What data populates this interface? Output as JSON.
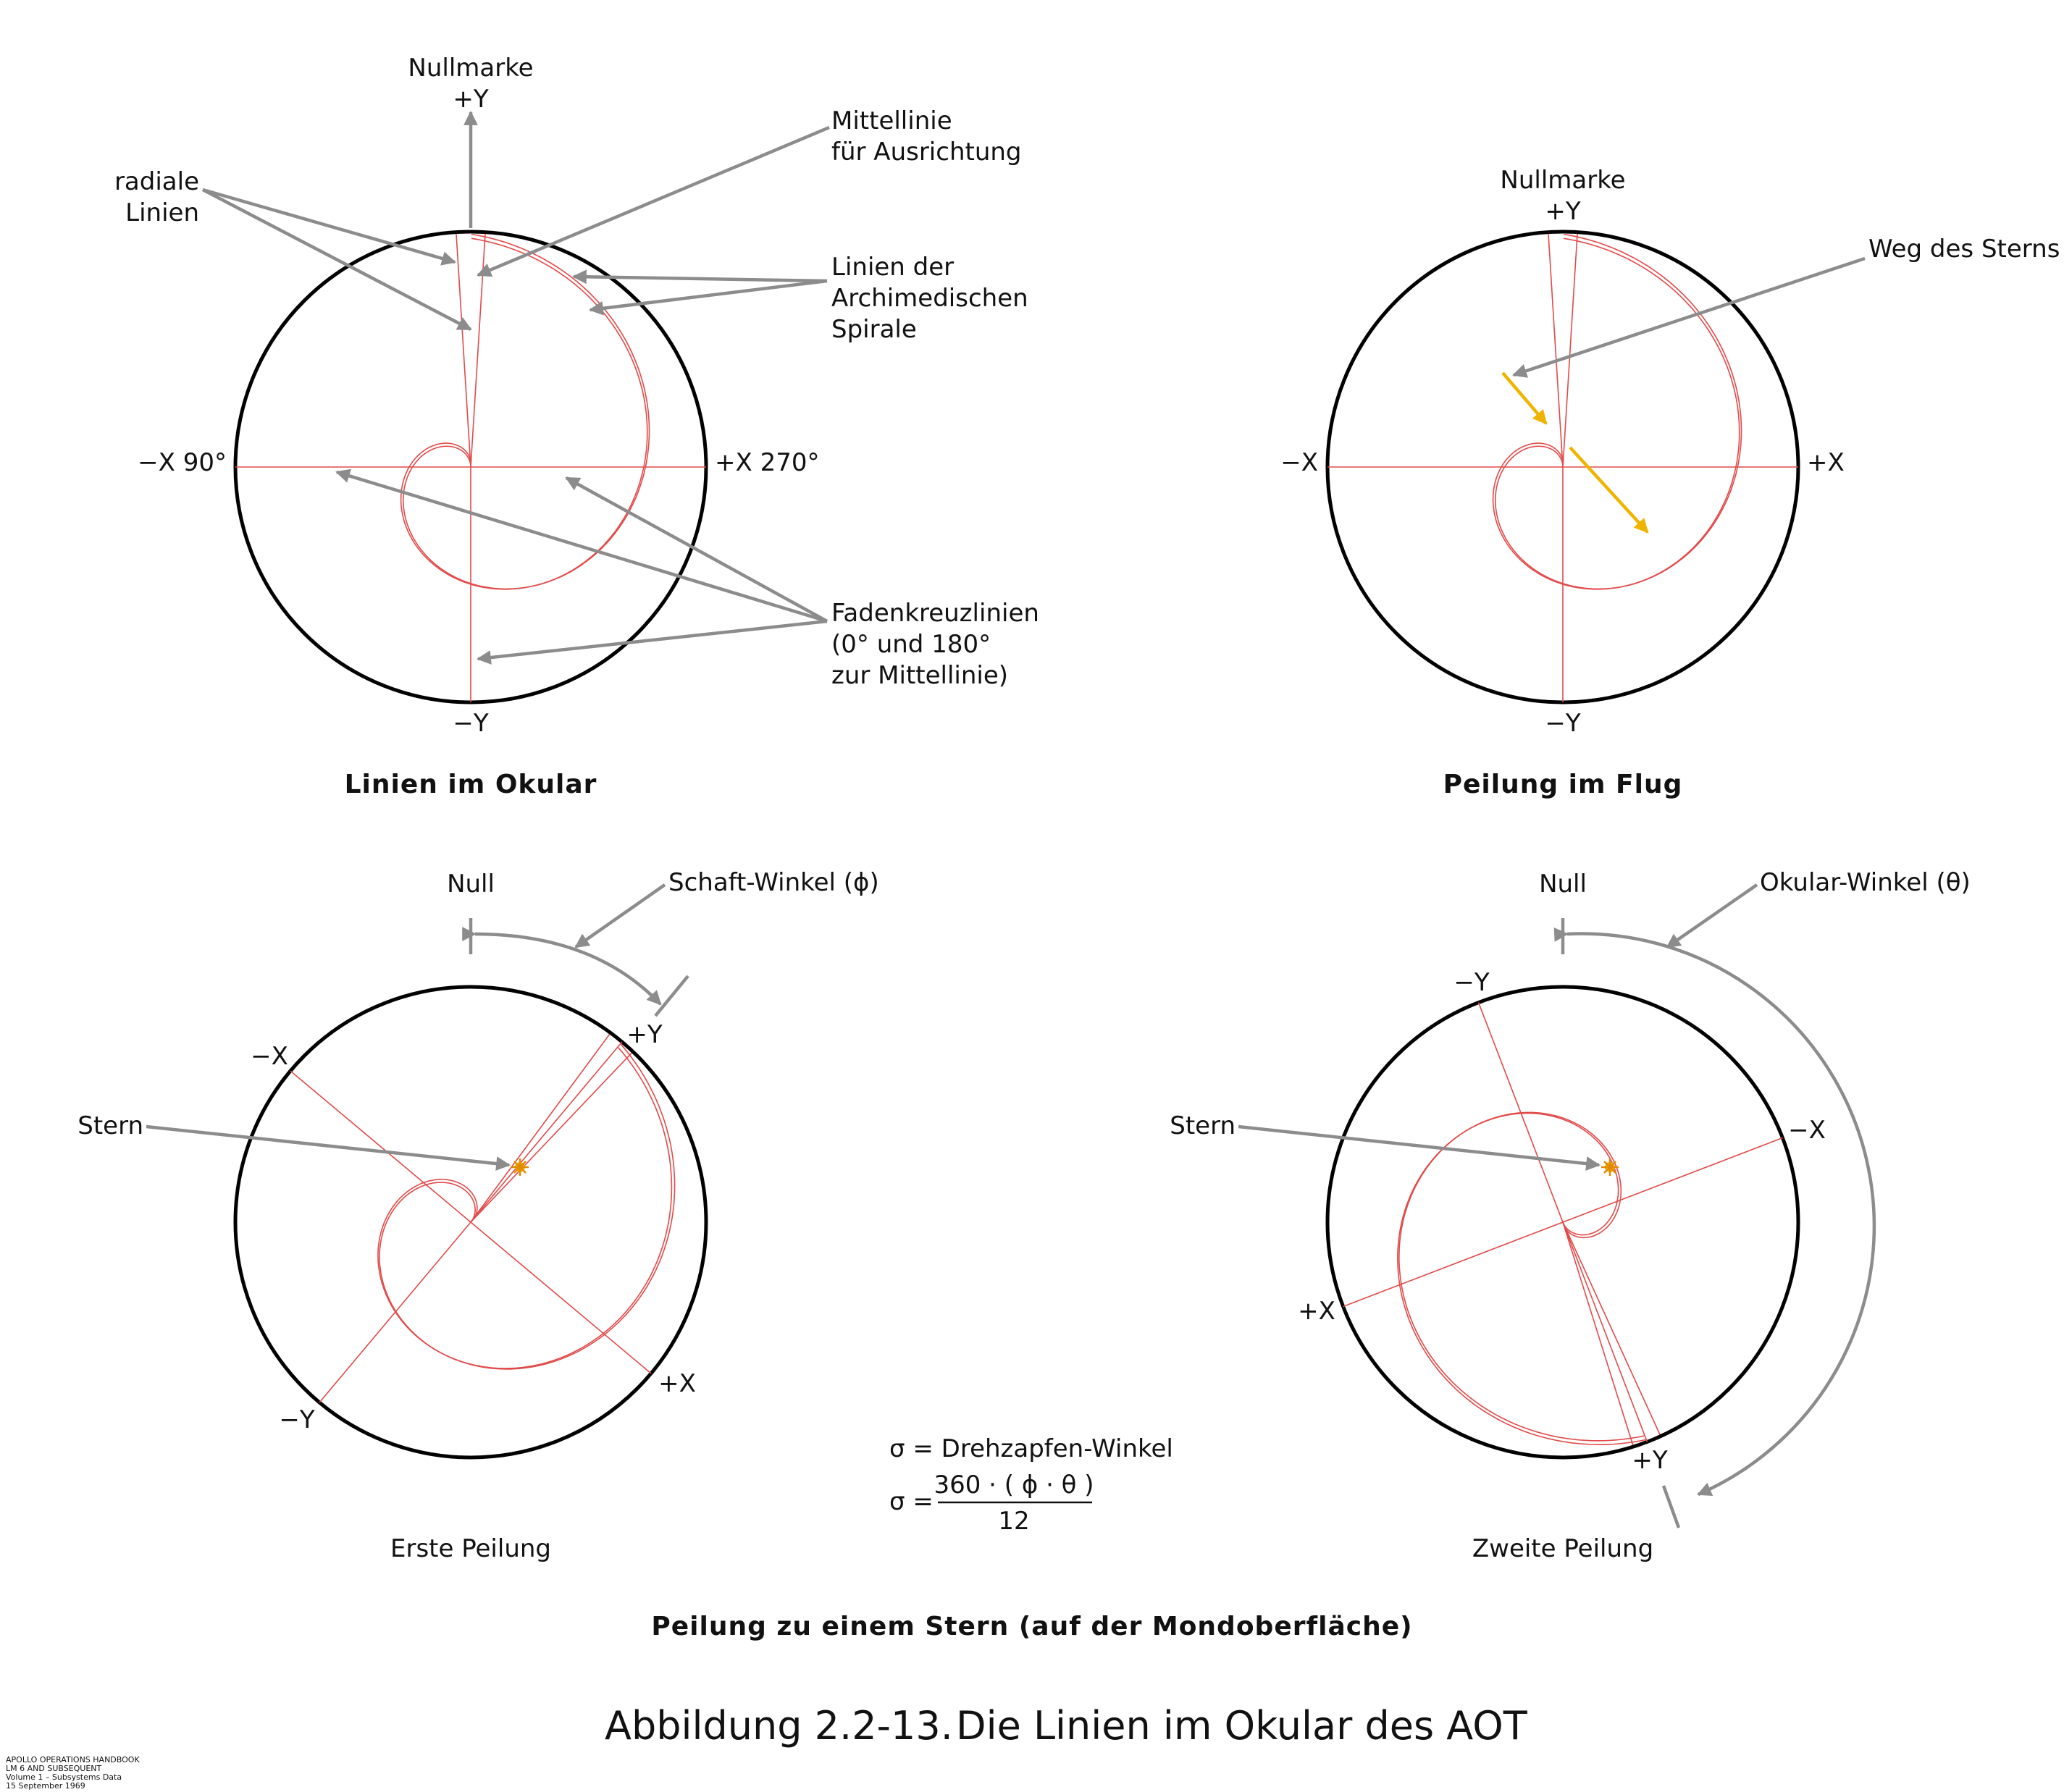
{
  "figure": {
    "caption_number": "Abbildung 2.2-13.",
    "caption_text": "Die Linien im Okular des AOT",
    "bottom_title": "Peilung zu einem Stern (auf der Mondoberfläche)",
    "footer": [
      "APOLLO OPERATIONS HANDBOOK",
      "LM 6 AND SUBSEQUENT",
      "Volume 1 – Subsystems Data",
      "15 September 1969"
    ],
    "colors": {
      "reticle": "#e24a4a",
      "pointer": "#8c8c8c",
      "star_path": "#f0b400",
      "outline": "#000000"
    }
  },
  "panel1": {
    "title": "Linien im Okular",
    "nullmarke": "Nullmarke",
    "plus_y": "+Y",
    "minus_y": "−Y",
    "minus_x": "−X 90°",
    "plus_x": "+X 270°",
    "radial": [
      "radiale",
      "Linien"
    ],
    "mittellinie": [
      "Mittellinie",
      "für Ausrichtung"
    ],
    "spirale": [
      "Linien der",
      "Archimedischen",
      "Spirale"
    ],
    "fadenkreuz": [
      "Fadenkreuzlinien",
      "(0° und 180°",
      "zur Mittellinie)"
    ]
  },
  "panel2": {
    "title": "Peilung im Flug",
    "nullmarke": "Nullmarke",
    "plus_y": "+Y",
    "minus_y": "−Y",
    "minus_x": "−X",
    "plus_x": "+X",
    "weg": "Weg des Sterns"
  },
  "panel3": {
    "title": "Erste Peilung",
    "null": "Null",
    "winkel": "Schaft-Winkel (ϕ)",
    "plus_y": "+Y",
    "minus_y": "−Y",
    "minus_x": "−X",
    "plus_x": "+X",
    "stern": "Stern"
  },
  "panel4": {
    "title": "Zweite Peilung",
    "null": "Null",
    "winkel": "Okular-Winkel (θ)",
    "plus_y": "+Y",
    "minus_y": "−Y",
    "minus_x": "−X",
    "plus_x": "+X",
    "stern": "Stern"
  },
  "formula": {
    "line1": "σ = Drehzapfen-Winkel",
    "lhs": "σ =",
    "numerator": "360 · ( ϕ · θ )",
    "denominator": "12"
  }
}
